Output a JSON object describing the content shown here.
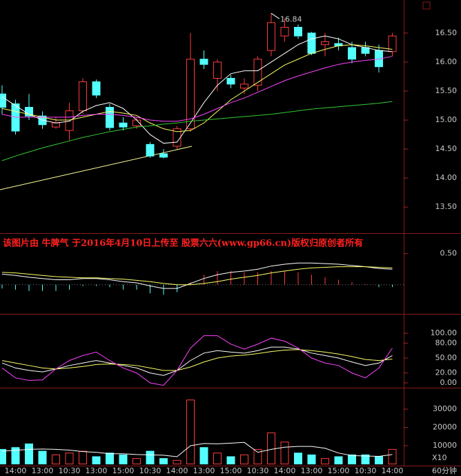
{
  "chart_data": [
    {
      "type": "candlestick",
      "up_color": "#ff3c3c",
      "down_color": "#54ffff",
      "open": [
        15.45,
        15.28,
        15.22,
        15.07,
        14.88,
        14.82,
        15.16,
        15.66,
        15.22,
        14.95,
        14.9,
        14.58,
        14.42,
        14.55,
        14.85,
        16.05,
        15.72,
        15.72,
        15.55,
        15.6,
        16.2,
        16.45,
        16.6,
        16.5,
        16.3,
        16.32,
        16.25,
        16.25,
        16.2,
        16.18
      ],
      "high": [
        15.6,
        15.35,
        15.45,
        15.15,
        15.05,
        15.3,
        15.72,
        15.7,
        15.28,
        15.05,
        15.05,
        14.62,
        14.5,
        14.9,
        16.5,
        16.2,
        16.05,
        15.78,
        15.72,
        16.1,
        16.84,
        16.75,
        16.65,
        16.52,
        16.5,
        16.42,
        16.35,
        16.35,
        16.3,
        16.5
      ],
      "low": [
        15.1,
        14.75,
        15.0,
        14.85,
        14.85,
        14.65,
        15.1,
        15.38,
        14.82,
        14.82,
        14.85,
        14.35,
        14.34,
        14.5,
        14.8,
        15.88,
        15.5,
        15.55,
        15.45,
        15.5,
        16.1,
        16.35,
        16.4,
        16.12,
        16.1,
        16.2,
        15.98,
        16.1,
        15.82,
        16.1
      ],
      "close": [
        15.22,
        14.81,
        15.07,
        14.92,
        14.95,
        15.16,
        15.66,
        15.43,
        14.87,
        14.88,
        15.0,
        14.38,
        14.36,
        14.85,
        16.05,
        15.96,
        16.0,
        15.62,
        15.62,
        16.05,
        16.68,
        16.6,
        16.45,
        16.15,
        16.35,
        16.28,
        16.05,
        16.15,
        15.92,
        16.45
      ],
      "series": [
        {
          "color": "#ffffff",
          "values": [
            15.4,
            15.25,
            15.1,
            15.0,
            14.95,
            14.98,
            15.15,
            15.25,
            15.3,
            15.2,
            15.0,
            14.75,
            14.6,
            14.62,
            14.95,
            15.3,
            15.6,
            15.8,
            15.85,
            15.85,
            16.0,
            16.15,
            16.3,
            16.4,
            16.45,
            16.4,
            16.3,
            16.25,
            16.2,
            16.18
          ]
        },
        {
          "color": "#ffff66",
          "values": [
            15.2,
            15.15,
            15.1,
            15.05,
            15.0,
            15.0,
            15.05,
            15.1,
            15.15,
            15.12,
            15.08,
            14.95,
            14.85,
            14.8,
            14.82,
            14.95,
            15.15,
            15.35,
            15.5,
            15.65,
            15.8,
            15.95,
            16.05,
            16.15,
            16.22,
            16.28,
            16.3,
            16.28,
            16.25,
            16.22
          ]
        },
        {
          "color": "#ff44ff",
          "values": [
            15.1,
            15.05,
            15.05,
            15.05,
            15.05,
            15.05,
            15.08,
            15.1,
            15.1,
            15.08,
            15.05,
            15.0,
            14.98,
            14.98,
            15.02,
            15.1,
            15.2,
            15.3,
            15.38,
            15.48,
            15.58,
            15.68,
            15.76,
            15.83,
            15.9,
            15.96,
            16.0,
            16.03,
            16.05,
            16.1
          ]
        },
        {
          "color": "#33cc33",
          "values": [
            14.3,
            14.38,
            14.45,
            14.52,
            14.58,
            14.64,
            14.7,
            14.75,
            14.8,
            14.84,
            14.88,
            14.9,
            14.93,
            14.95,
            14.98,
            15.0,
            15.02,
            15.04,
            15.06,
            15.08,
            15.1,
            15.13,
            15.16,
            15.19,
            15.21,
            15.23,
            15.25,
            15.27,
            15.29,
            15.32
          ]
        }
      ],
      "ylim": [
        13.05,
        17.07
      ],
      "yticks": [
        {
          "value": 13.5,
          "label": "13.50"
        },
        {
          "value": 14,
          "label": "14.00"
        },
        {
          "value": 14.5,
          "label": "14.50"
        },
        {
          "value": 15,
          "label": "15.00"
        },
        {
          "value": 15.5,
          "label": "15.50"
        },
        {
          "value": 16,
          "label": "16.00"
        },
        {
          "value": 16.5,
          "label": "16.50"
        }
      ]
    },
    {
      "type": "macd",
      "series": [
        {
          "color": "#ffffff",
          "values": [
            0.17,
            0.15,
            0.12,
            0.1,
            0.08,
            0.08,
            0.1,
            0.1,
            0.08,
            0.05,
            0.03,
            -0.02,
            -0.06,
            -0.06,
            0.02,
            0.1,
            0.16,
            0.2,
            0.22,
            0.25,
            0.3,
            0.33,
            0.35,
            0.35,
            0.34,
            0.33,
            0.31,
            0.29,
            0.26,
            0.25
          ]
        },
        {
          "color": "#ffff66",
          "values": [
            0.2,
            0.19,
            0.17,
            0.15,
            0.13,
            0.12,
            0.11,
            0.11,
            0.1,
            0.09,
            0.07,
            0.05,
            0.02,
            0.0,
            0.0,
            0.02,
            0.05,
            0.09,
            0.12,
            0.15,
            0.19,
            0.22,
            0.25,
            0.27,
            0.28,
            0.29,
            0.29,
            0.29,
            0.28,
            0.27
          ]
        }
      ],
      "values": [
        -0.06,
        -0.08,
        -0.1,
        -0.1,
        -0.1,
        -0.08,
        -0.02,
        -0.02,
        -0.04,
        -0.08,
        -0.08,
        -0.14,
        -0.16,
        -0.12,
        0.04,
        0.16,
        0.22,
        0.22,
        0.2,
        0.2,
        0.22,
        0.22,
        0.2,
        0.16,
        0.12,
        0.08,
        0.04,
        0.01,
        -0.04,
        -0.04
      ],
      "ylim": [
        -0.47,
        0.83
      ],
      "yticks": [
        {
          "value": 0.5,
          "label": "0.50"
        }
      ]
    },
    {
      "type": "line",
      "series": [
        {
          "color": "#ffffff",
          "values": [
            40,
            30,
            25,
            22,
            28,
            35,
            40,
            45,
            40,
            35,
            30,
            20,
            15,
            25,
            45,
            60,
            65,
            62,
            60,
            65,
            72,
            72,
            68,
            60,
            55,
            50,
            42,
            35,
            40,
            55
          ]
        },
        {
          "color": "#ffff66",
          "values": [
            45,
            40,
            35,
            30,
            28,
            30,
            33,
            37,
            38,
            37,
            35,
            30,
            25,
            25,
            32,
            42,
            50,
            54,
            56,
            59,
            63,
            66,
            67,
            65,
            62,
            58,
            53,
            47,
            45,
            48
          ]
        },
        {
          "color": "#ff44ff",
          "values": [
            30,
            10,
            5,
            6,
            28,
            45,
            55,
            62,
            45,
            30,
            20,
            0,
            -5,
            25,
            70,
            95,
            95,
            78,
            68,
            78,
            90,
            84,
            70,
            50,
            40,
            35,
            20,
            10,
            30,
            70
          ]
        }
      ],
      "ylim": [
        -9.7,
        138.9
      ],
      "yticks": [
        {
          "value": 0,
          "label": "0.00"
        },
        {
          "value": 20,
          "label": "20.00"
        },
        {
          "value": 50,
          "label": "50.00"
        },
        {
          "value": 80,
          "label": "80.00"
        },
        {
          "value": 100,
          "label": "100.00"
        }
      ]
    },
    {
      "type": "bar",
      "categories": [
        null,
        "14:00",
        null,
        "13:00",
        null,
        "10:30",
        null,
        "13:00",
        null,
        "15:00",
        null,
        "10:30",
        null,
        "14:00",
        null,
        "13:00",
        null,
        "15:00",
        null,
        "10:30",
        null,
        "14:00",
        null,
        "13:00",
        null,
        "15:00",
        null,
        "10:30",
        null,
        "14:00"
      ],
      "values": [
        8000,
        9000,
        11000,
        7000,
        5000,
        6000,
        7000,
        4000,
        6000,
        5000,
        3000,
        7000,
        3000,
        2000,
        35000,
        9000,
        6000,
        4000,
        5000,
        8000,
        17000,
        12000,
        6000,
        5000,
        3000,
        4000,
        5000,
        5000,
        4000,
        8000
      ],
      "series": [
        {
          "color": "#ffffff",
          "values": [
            7000,
            7500,
            8000,
            8200,
            8000,
            7600,
            6800,
            6400,
            5600,
            5600,
            5200,
            5000,
            4800,
            4000,
            10000,
            11200,
            11000,
            11400,
            11800,
            6400,
            8000,
            9200,
            9600,
            9600,
            8600,
            6000,
            4600,
            4400,
            4200,
            5200
          ]
        }
      ],
      "unit_label": "X10",
      "ylim": [
        -900,
        41700
      ],
      "yticks": [
        10000,
        20000,
        30000
      ]
    }
  ],
  "watermark": "该图片由 牛脾气 于2016年4月10日上传至 股票六六(www.gp66.cn)版权归原创者所有",
  "period": "60分钟"
}
